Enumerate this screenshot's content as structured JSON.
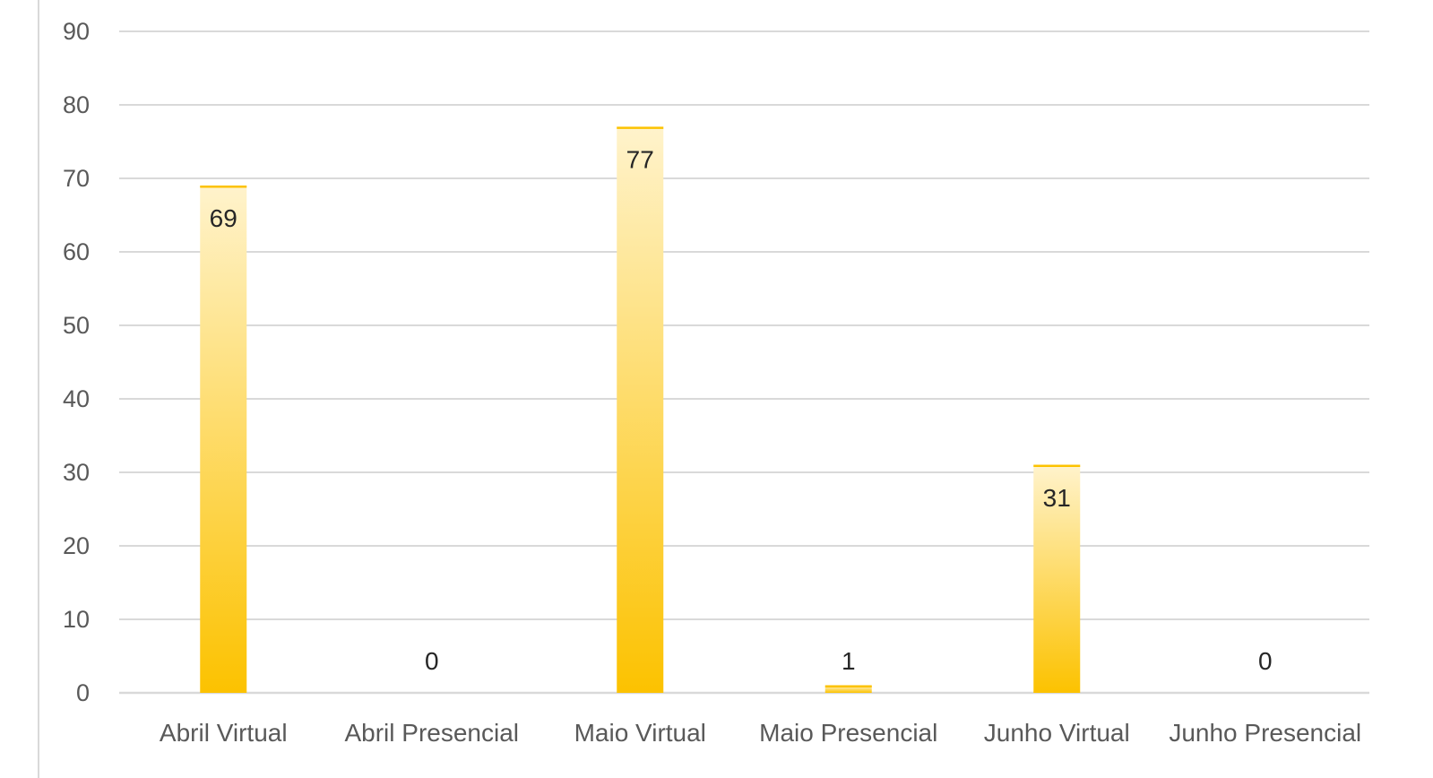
{
  "chart_data": {
    "type": "bar",
    "title": "",
    "xlabel": "",
    "ylabel": "",
    "categories": [
      "Abril  Virtual",
      "Abril Presencial",
      "Maio Virtual",
      "Maio Presencial",
      "Junho Virtual",
      "Junho Presencial"
    ],
    "values": [
      69,
      0,
      77,
      1,
      31,
      0
    ],
    "data_labels": [
      "69",
      "0",
      "77",
      "1",
      "31",
      "0"
    ],
    "ylim": [
      0,
      90
    ],
    "yticks": [
      "0",
      "10",
      "20",
      "30",
      "40",
      "50",
      "60",
      "70",
      "80",
      "90"
    ],
    "grid": true,
    "legend": "none",
    "colors": {
      "bar_top": "#fff3cc",
      "bar_bottom": "#fcc200",
      "grid": "#d9d9d9"
    }
  }
}
